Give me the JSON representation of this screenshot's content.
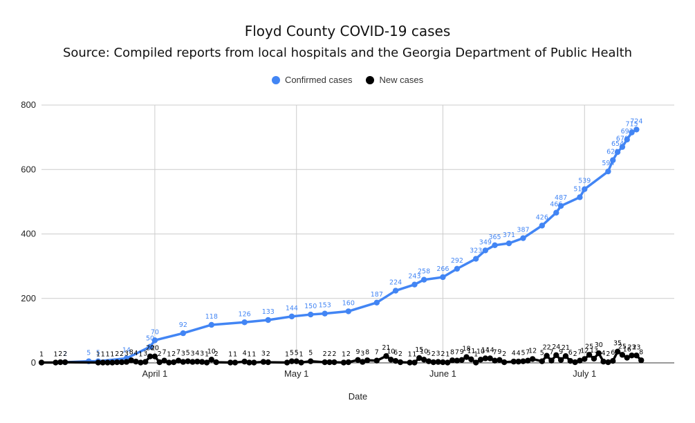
{
  "chart_data": {
    "type": "line",
    "title": "Floyd County COVID-19 cases",
    "subtitle": "Source: Compiled reports from local hospitals and the Georgia Department of Public Health",
    "xlabel": "Date",
    "ylabel": "",
    "ylim": [
      0,
      800
    ],
    "yticks": [
      0,
      200,
      400,
      600,
      800
    ],
    "xlim": [
      "2020-03-08",
      "2020-07-20"
    ],
    "xticks": [
      {
        "date": "2020-04-01",
        "label": "April 1"
      },
      {
        "date": "2020-05-01",
        "label": "May 1"
      },
      {
        "date": "2020-06-01",
        "label": "June 1"
      },
      {
        "date": "2020-07-01",
        "label": "July 1"
      }
    ],
    "grid": true,
    "legend_position": "top",
    "series": [
      {
        "name": "Confirmed cases",
        "color": "#4285f4",
        "points": [
          [
            "2020-03-13",
            2
          ],
          [
            "2020-03-18",
            5
          ],
          [
            "2020-03-20",
            5
          ],
          [
            "2020-03-26",
            14
          ],
          [
            "2020-03-31",
            50
          ],
          [
            "2020-04-01",
            70
          ],
          [
            "2020-04-07",
            92
          ],
          [
            "2020-04-13",
            118
          ],
          [
            "2020-04-20",
            126
          ],
          [
            "2020-04-25",
            133
          ],
          [
            "2020-04-30",
            144
          ],
          [
            "2020-05-04",
            150
          ],
          [
            "2020-05-07",
            153
          ],
          [
            "2020-05-12",
            160
          ],
          [
            "2020-05-18",
            187
          ],
          [
            "2020-05-22",
            224
          ],
          [
            "2020-05-26",
            243
          ],
          [
            "2020-05-28",
            258
          ],
          [
            "2020-06-01",
            266
          ],
          [
            "2020-06-04",
            292
          ],
          [
            "2020-06-08",
            323
          ],
          [
            "2020-06-10",
            349
          ],
          [
            "2020-06-12",
            365
          ],
          [
            "2020-06-15",
            371
          ],
          [
            "2020-06-18",
            387
          ],
          [
            "2020-06-22",
            426
          ],
          [
            "2020-06-25",
            466
          ],
          [
            "2020-06-26",
            487
          ],
          [
            "2020-06-30",
            514
          ],
          [
            "2020-07-01",
            539
          ],
          [
            "2020-07-06",
            594
          ],
          [
            "2020-07-07",
            629
          ],
          [
            "2020-07-08",
            654
          ],
          [
            "2020-07-09",
            670
          ],
          [
            "2020-07-10",
            693
          ],
          [
            "2020-07-11",
            715
          ],
          [
            "2020-07-12",
            724
          ]
        ]
      },
      {
        "name": "New cases",
        "color": "#000000",
        "points": [
          [
            "2020-03-08",
            1
          ],
          [
            "2020-03-11",
            1
          ],
          [
            "2020-03-12",
            2
          ],
          [
            "2020-03-13",
            2
          ],
          [
            "2020-03-20",
            1
          ],
          [
            "2020-03-21",
            1
          ],
          [
            "2020-03-22",
            1
          ],
          [
            "2020-03-23",
            1
          ],
          [
            "2020-03-24",
            2
          ],
          [
            "2020-03-25",
            2
          ],
          [
            "2020-03-26",
            3
          ],
          [
            "2020-03-27",
            8
          ],
          [
            "2020-03-28",
            4
          ],
          [
            "2020-03-29",
            1
          ],
          [
            "2020-03-30",
            3
          ],
          [
            "2020-03-31",
            20
          ],
          [
            "2020-04-01",
            20
          ],
          [
            "2020-04-02",
            2
          ],
          [
            "2020-04-03",
            7
          ],
          [
            "2020-04-04",
            1
          ],
          [
            "2020-04-05",
            2
          ],
          [
            "2020-04-06",
            7
          ],
          [
            "2020-04-07",
            3
          ],
          [
            "2020-04-08",
            5
          ],
          [
            "2020-04-09",
            3
          ],
          [
            "2020-04-10",
            4
          ],
          [
            "2020-04-11",
            3
          ],
          [
            "2020-04-12",
            1
          ],
          [
            "2020-04-13",
            10
          ],
          [
            "2020-04-14",
            2
          ],
          [
            "2020-04-17",
            1
          ],
          [
            "2020-04-18",
            1
          ],
          [
            "2020-04-20",
            4
          ],
          [
            "2020-04-21",
            1
          ],
          [
            "2020-04-22",
            1
          ],
          [
            "2020-04-24",
            3
          ],
          [
            "2020-04-25",
            2
          ],
          [
            "2020-04-29",
            1
          ],
          [
            "2020-04-30",
            5
          ],
          [
            "2020-05-01",
            5
          ],
          [
            "2020-05-02",
            1
          ],
          [
            "2020-05-04",
            5
          ],
          [
            "2020-05-07",
            2
          ],
          [
            "2020-05-08",
            2
          ],
          [
            "2020-05-09",
            2
          ],
          [
            "2020-05-11",
            1
          ],
          [
            "2020-05-12",
            2
          ],
          [
            "2020-05-14",
            9
          ],
          [
            "2020-05-15",
            3
          ],
          [
            "2020-05-16",
            8
          ],
          [
            "2020-05-18",
            7
          ],
          [
            "2020-05-20",
            21
          ],
          [
            "2020-05-21",
            10
          ],
          [
            "2020-05-22",
            6
          ],
          [
            "2020-05-23",
            2
          ],
          [
            "2020-05-25",
            1
          ],
          [
            "2020-05-26",
            1
          ],
          [
            "2020-05-27",
            15
          ],
          [
            "2020-05-28",
            10
          ],
          [
            "2020-05-29",
            5
          ],
          [
            "2020-05-30",
            2
          ],
          [
            "2020-05-31",
            3
          ],
          [
            "2020-06-01",
            2
          ],
          [
            "2020-06-02",
            1
          ],
          [
            "2020-06-03",
            8
          ],
          [
            "2020-06-04",
            7
          ],
          [
            "2020-06-05",
            9
          ],
          [
            "2020-06-06",
            18
          ],
          [
            "2020-06-07",
            11
          ],
          [
            "2020-06-08",
            1
          ],
          [
            "2020-06-09",
            10
          ],
          [
            "2020-06-10",
            14
          ],
          [
            "2020-06-11",
            14
          ],
          [
            "2020-06-12",
            7
          ],
          [
            "2020-06-13",
            9
          ],
          [
            "2020-06-14",
            2
          ],
          [
            "2020-06-16",
            4
          ],
          [
            "2020-06-17",
            4
          ],
          [
            "2020-06-18",
            5
          ],
          [
            "2020-06-19",
            7
          ],
          [
            "2020-06-20",
            12
          ],
          [
            "2020-06-22",
            5
          ],
          [
            "2020-06-23",
            22
          ],
          [
            "2020-06-24",
            7
          ],
          [
            "2020-06-25",
            24
          ],
          [
            "2020-06-26",
            9
          ],
          [
            "2020-06-27",
            21
          ],
          [
            "2020-06-28",
            6
          ],
          [
            "2020-06-29",
            2
          ],
          [
            "2020-06-30",
            7
          ],
          [
            "2020-07-01",
            12
          ],
          [
            "2020-07-02",
            25
          ],
          [
            "2020-07-03",
            13
          ],
          [
            "2020-07-04",
            30
          ],
          [
            "2020-07-05",
            4
          ],
          [
            "2020-07-06",
            2
          ],
          [
            "2020-07-07",
            6
          ],
          [
            "2020-07-08",
            35
          ],
          [
            "2020-07-09",
            25
          ],
          [
            "2020-07-10",
            16
          ],
          [
            "2020-07-11",
            23
          ],
          [
            "2020-07-12",
            23
          ],
          [
            "2020-07-13",
            8
          ]
        ]
      }
    ]
  }
}
